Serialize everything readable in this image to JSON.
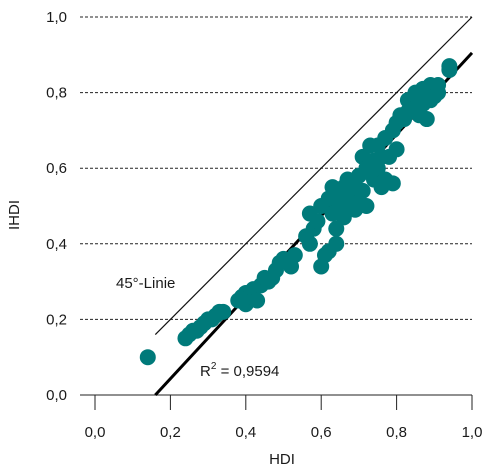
{
  "chart_data": {
    "type": "scatter",
    "xlabel": "HDI",
    "ylabel": "IHDI",
    "xlim": [
      0.0,
      1.0
    ],
    "ylim": [
      0.0,
      1.0
    ],
    "x_ticks": [
      "0,0",
      "0,2",
      "0,4",
      "0,6",
      "0,8",
      "1,0"
    ],
    "y_ticks": [
      "0,0",
      "0,2",
      "0,4",
      "0,6",
      "0,8",
      "1,0"
    ],
    "grid": "horizontal dashed",
    "point_color": "#007a7a",
    "reference_line": {
      "label": "45°-Linie",
      "from": [
        0.16,
        0.16
      ],
      "to": [
        1.0,
        1.0
      ]
    },
    "regression_line": {
      "from": [
        0.16,
        0.0
      ],
      "to": [
        1.0,
        0.905
      ]
    },
    "r_squared_label": {
      "prefix": "R",
      "sup": "2",
      "value": " = 0,9594"
    },
    "points": [
      [
        0.14,
        0.1
      ],
      [
        0.24,
        0.15
      ],
      [
        0.25,
        0.16
      ],
      [
        0.26,
        0.17
      ],
      [
        0.27,
        0.17
      ],
      [
        0.28,
        0.18
      ],
      [
        0.29,
        0.19
      ],
      [
        0.3,
        0.2
      ],
      [
        0.31,
        0.2
      ],
      [
        0.32,
        0.21
      ],
      [
        0.33,
        0.22
      ],
      [
        0.34,
        0.22
      ],
      [
        0.38,
        0.25
      ],
      [
        0.39,
        0.26
      ],
      [
        0.4,
        0.24
      ],
      [
        0.4,
        0.27
      ],
      [
        0.41,
        0.26
      ],
      [
        0.42,
        0.28
      ],
      [
        0.43,
        0.25
      ],
      [
        0.44,
        0.29
      ],
      [
        0.45,
        0.31
      ],
      [
        0.46,
        0.3
      ],
      [
        0.47,
        0.31
      ],
      [
        0.48,
        0.33
      ],
      [
        0.49,
        0.35
      ],
      [
        0.5,
        0.36
      ],
      [
        0.52,
        0.34
      ],
      [
        0.53,
        0.37
      ],
      [
        0.56,
        0.42
      ],
      [
        0.57,
        0.4
      ],
      [
        0.57,
        0.48
      ],
      [
        0.58,
        0.44
      ],
      [
        0.59,
        0.46
      ],
      [
        0.6,
        0.5
      ],
      [
        0.6,
        0.34
      ],
      [
        0.61,
        0.37
      ],
      [
        0.62,
        0.38
      ],
      [
        0.62,
        0.52
      ],
      [
        0.63,
        0.48
      ],
      [
        0.63,
        0.55
      ],
      [
        0.64,
        0.44
      ],
      [
        0.64,
        0.4
      ],
      [
        0.65,
        0.5
      ],
      [
        0.65,
        0.53
      ],
      [
        0.66,
        0.47
      ],
      [
        0.66,
        0.55
      ],
      [
        0.67,
        0.5
      ],
      [
        0.67,
        0.57
      ],
      [
        0.68,
        0.52
      ],
      [
        0.69,
        0.49
      ],
      [
        0.69,
        0.55
      ],
      [
        0.7,
        0.58
      ],
      [
        0.7,
        0.51
      ],
      [
        0.71,
        0.63
      ],
      [
        0.71,
        0.54
      ],
      [
        0.72,
        0.6
      ],
      [
        0.72,
        0.5
      ],
      [
        0.73,
        0.59
      ],
      [
        0.73,
        0.66
      ],
      [
        0.74,
        0.57
      ],
      [
        0.74,
        0.62
      ],
      [
        0.75,
        0.6
      ],
      [
        0.75,
        0.66
      ],
      [
        0.76,
        0.55
      ],
      [
        0.76,
        0.63
      ],
      [
        0.77,
        0.57
      ],
      [
        0.77,
        0.68
      ],
      [
        0.78,
        0.63
      ],
      [
        0.79,
        0.7
      ],
      [
        0.79,
        0.56
      ],
      [
        0.8,
        0.72
      ],
      [
        0.8,
        0.65
      ],
      [
        0.81,
        0.74
      ],
      [
        0.82,
        0.73
      ],
      [
        0.83,
        0.75
      ],
      [
        0.83,
        0.78
      ],
      [
        0.84,
        0.77
      ],
      [
        0.85,
        0.8
      ],
      [
        0.85,
        0.76
      ],
      [
        0.86,
        0.79
      ],
      [
        0.86,
        0.74
      ],
      [
        0.87,
        0.81
      ],
      [
        0.87,
        0.77
      ],
      [
        0.88,
        0.8
      ],
      [
        0.88,
        0.73
      ],
      [
        0.89,
        0.82
      ],
      [
        0.89,
        0.78
      ],
      [
        0.9,
        0.81
      ],
      [
        0.9,
        0.79
      ],
      [
        0.91,
        0.8
      ],
      [
        0.91,
        0.82
      ],
      [
        0.94,
        0.86
      ],
      [
        0.94,
        0.87
      ]
    ]
  }
}
